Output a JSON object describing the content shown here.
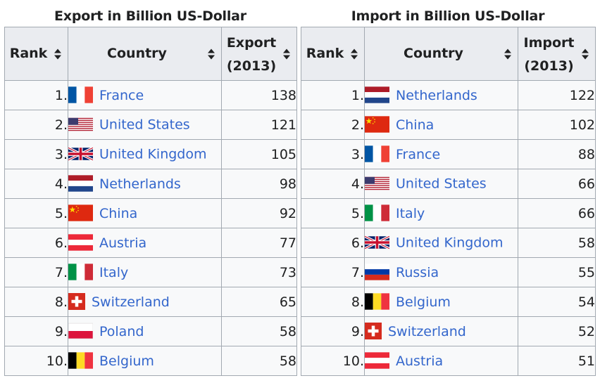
{
  "export_table": {
    "caption": "Export in Billion US-Dollar",
    "headers": {
      "rank": "Rank",
      "country": "Country",
      "value_line1": "Export",
      "value_line2": "(2013)"
    },
    "rows": [
      {
        "rank": "1.",
        "country": "France",
        "flag": "france-flag",
        "value": "138"
      },
      {
        "rank": "2.",
        "country": "United States",
        "flag": "us-flag",
        "value": "121"
      },
      {
        "rank": "3.",
        "country": "United Kingdom",
        "flag": "uk-flag",
        "value": "105"
      },
      {
        "rank": "4.",
        "country": "Netherlands",
        "flag": "netherlands-flag",
        "value": "98"
      },
      {
        "rank": "5.",
        "country": "China",
        "flag": "china-flag",
        "value": "92"
      },
      {
        "rank": "6.",
        "country": "Austria",
        "flag": "austria-flag",
        "value": "77"
      },
      {
        "rank": "7.",
        "country": "Italy",
        "flag": "italy-flag",
        "value": "73"
      },
      {
        "rank": "8.",
        "country": "Switzerland",
        "flag": "switzerland-flag",
        "value": "65"
      },
      {
        "rank": "9.",
        "country": "Poland",
        "flag": "poland-flag",
        "value": "58"
      },
      {
        "rank": "10.",
        "country": "Belgium",
        "flag": "belgium-flag",
        "value": "58"
      }
    ]
  },
  "import_table": {
    "caption": "Import in Billion US-Dollar",
    "headers": {
      "rank": "Rank",
      "country": "Country",
      "value_line1": "Import",
      "value_line2": "(2013)"
    },
    "rows": [
      {
        "rank": "1.",
        "country": "Netherlands",
        "flag": "netherlands-flag",
        "value": "122"
      },
      {
        "rank": "2.",
        "country": "China",
        "flag": "china-flag",
        "value": "102"
      },
      {
        "rank": "3.",
        "country": "France",
        "flag": "france-flag",
        "value": "88"
      },
      {
        "rank": "4.",
        "country": "United States",
        "flag": "us-flag",
        "value": "66"
      },
      {
        "rank": "5.",
        "country": "Italy",
        "flag": "italy-flag",
        "value": "66"
      },
      {
        "rank": "6.",
        "country": "United Kingdom",
        "flag": "uk-flag",
        "value": "58"
      },
      {
        "rank": "7.",
        "country": "Russia",
        "flag": "russia-flag",
        "value": "55"
      },
      {
        "rank": "8.",
        "country": "Belgium",
        "flag": "belgium-flag",
        "value": "54"
      },
      {
        "rank": "9.",
        "country": "Switzerland",
        "flag": "switzerland-flag",
        "value": "52"
      },
      {
        "rank": "10.",
        "country": "Austria",
        "flag": "austria-flag",
        "value": "51"
      }
    ]
  },
  "icons": {
    "sort": "sort-arrows-icon"
  },
  "colors": {
    "link": "#3366cc",
    "header_bg": "#eaecf0",
    "cell_bg": "#f8f9fa",
    "border": "#a2a9b1"
  }
}
